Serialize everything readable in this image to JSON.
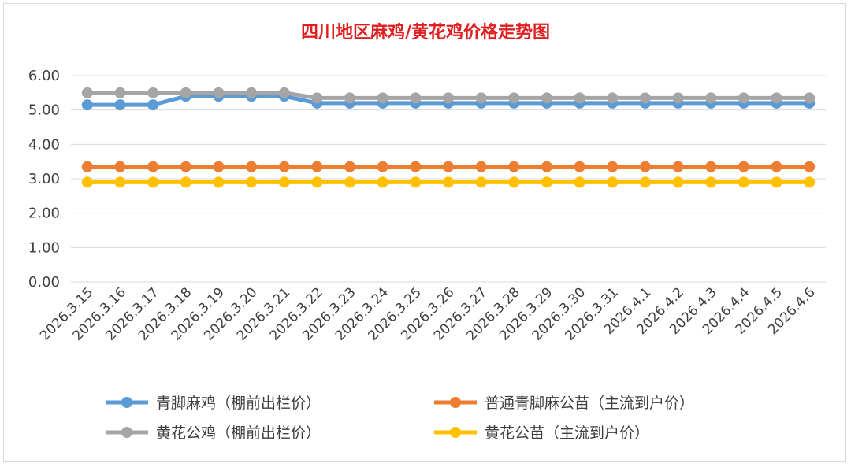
{
  "chart_data": {
    "type": "line",
    "title": "四川地区麻鸡/黄花鸡价格走势图",
    "categories": [
      "2026.3.15",
      "2026.3.16",
      "2026.3.17",
      "2026.3.18",
      "2026.3.19",
      "2026.3.20",
      "2026.3.21",
      "2026.3.22",
      "2026.3.23",
      "2026.3.24",
      "2026.3.25",
      "2026.3.26",
      "2026.3.27",
      "2026.3.28",
      "2026.3.29",
      "2026.3.30",
      "2026.3.31",
      "2026.4.1",
      "2026.4.2",
      "2026.4.3",
      "2026.4.4",
      "2026.4.5",
      "2026.4.6"
    ],
    "yticks": [
      "0.00",
      "1.00",
      "2.00",
      "3.00",
      "4.00",
      "5.00",
      "6.00"
    ],
    "ylim": [
      0,
      6
    ],
    "grid": true,
    "legend_position": "bottom",
    "series": [
      {
        "name": "青脚麻鸡（棚前出栏价）",
        "color": "#5b9bd5",
        "values": [
          5.15,
          5.15,
          5.15,
          5.4,
          5.4,
          5.4,
          5.4,
          5.2,
          5.2,
          5.2,
          5.2,
          5.2,
          5.2,
          5.2,
          5.2,
          5.2,
          5.2,
          5.2,
          5.2,
          5.2,
          5.2,
          5.2,
          5.2
        ]
      },
      {
        "name": "普通青脚麻公苗（主流到户价）",
        "color": "#ed7d31",
        "values": [
          3.35,
          3.35,
          3.35,
          3.35,
          3.35,
          3.35,
          3.35,
          3.35,
          3.35,
          3.35,
          3.35,
          3.35,
          3.35,
          3.35,
          3.35,
          3.35,
          3.35,
          3.35,
          3.35,
          3.35,
          3.35,
          3.35,
          3.35
        ]
      },
      {
        "name": "黄花公鸡（棚前出栏价）",
        "color": "#a5a5a5",
        "values": [
          5.5,
          5.5,
          5.5,
          5.5,
          5.5,
          5.5,
          5.5,
          5.35,
          5.35,
          5.35,
          5.35,
          5.35,
          5.35,
          5.35,
          5.35,
          5.35,
          5.35,
          5.35,
          5.35,
          5.35,
          5.35,
          5.35,
          5.35
        ]
      },
      {
        "name": "黄花公苗（主流到户价）",
        "color": "#ffc000",
        "values": [
          2.9,
          2.9,
          2.9,
          2.9,
          2.9,
          2.9,
          2.9,
          2.9,
          2.9,
          2.9,
          2.9,
          2.9,
          2.9,
          2.9,
          2.9,
          2.9,
          2.9,
          2.9,
          2.9,
          2.9,
          2.9,
          2.9,
          2.9
        ]
      }
    ]
  },
  "colors": {
    "title": "#e02020",
    "grid": "#d9d9d9",
    "axis_text": "#404040"
  }
}
